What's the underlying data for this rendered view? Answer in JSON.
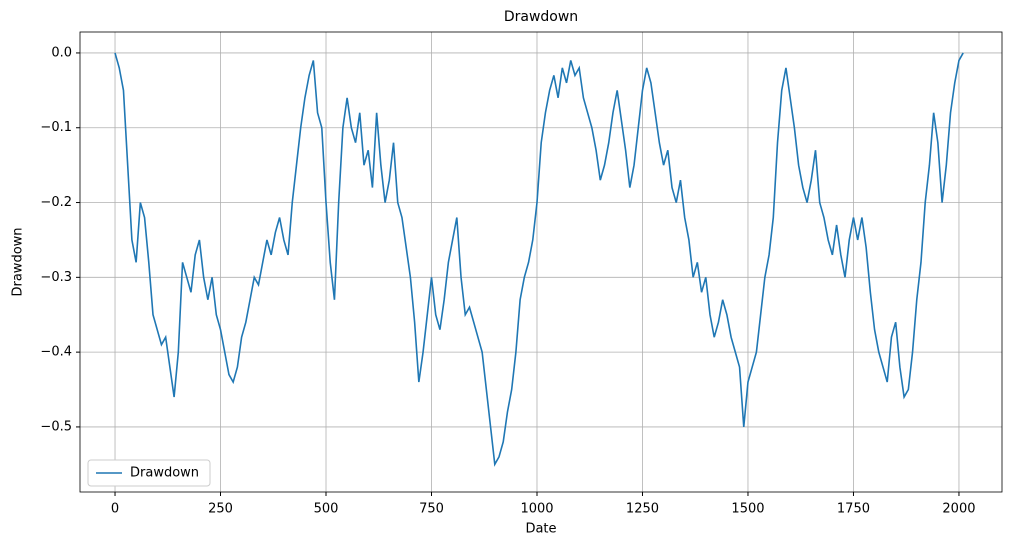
{
  "chart_data": {
    "type": "line",
    "title": "Drawdown",
    "x_label": "Date",
    "y_label": "Drawdown",
    "x": [
      0,
      10,
      20,
      30,
      40,
      50,
      60,
      70,
      80,
      90,
      100,
      110,
      120,
      130,
      140,
      150,
      160,
      170,
      180,
      190,
      200,
      210,
      220,
      230,
      240,
      250,
      260,
      270,
      280,
      290,
      300,
      310,
      320,
      330,
      340,
      350,
      360,
      370,
      380,
      390,
      400,
      410,
      420,
      430,
      440,
      450,
      460,
      470,
      480,
      490,
      500,
      510,
      520,
      530,
      540,
      550,
      560,
      570,
      580,
      590,
      600,
      610,
      620,
      630,
      640,
      650,
      660,
      670,
      680,
      690,
      700,
      710,
      720,
      730,
      740,
      750,
      760,
      770,
      780,
      790,
      800,
      810,
      820,
      830,
      840,
      850,
      860,
      870,
      880,
      890,
      900,
      910,
      920,
      930,
      940,
      950,
      960,
      970,
      980,
      990,
      1000,
      1010,
      1020,
      1030,
      1040,
      1050,
      1060,
      1070,
      1080,
      1090,
      1100,
      1110,
      1120,
      1130,
      1140,
      1150,
      1160,
      1170,
      1180,
      1190,
      1200,
      1210,
      1220,
      1230,
      1240,
      1250,
      1260,
      1270,
      1280,
      1290,
      1300,
      1310,
      1320,
      1330,
      1340,
      1350,
      1360,
      1370,
      1380,
      1390,
      1400,
      1410,
      1420,
      1430,
      1440,
      1450,
      1460,
      1470,
      1480,
      1490,
      1500,
      1510,
      1520,
      1530,
      1540,
      1550,
      1560,
      1570,
      1580,
      1590,
      1600,
      1610,
      1620,
      1630,
      1640,
      1650,
      1660,
      1670,
      1680,
      1690,
      1700,
      1710,
      1720,
      1730,
      1740,
      1750,
      1760,
      1770,
      1780,
      1790,
      1800,
      1810,
      1820,
      1830,
      1840,
      1850,
      1860,
      1870,
      1880,
      1890,
      1900,
      1910,
      1920,
      1930,
      1940,
      1950,
      1960,
      1970,
      1980,
      1990,
      2000,
      2010
    ],
    "series": [
      {
        "name": "Drawdown",
        "color": "#1f77b4",
        "values": [
          0,
          -0.02,
          -0.05,
          -0.15,
          -0.25,
          -0.28,
          -0.2,
          -0.22,
          -0.28,
          -0.35,
          -0.37,
          -0.39,
          -0.38,
          -0.42,
          -0.46,
          -0.4,
          -0.28,
          -0.3,
          -0.32,
          -0.27,
          -0.25,
          -0.3,
          -0.33,
          -0.3,
          -0.35,
          -0.37,
          -0.4,
          -0.43,
          -0.44,
          -0.42,
          -0.38,
          -0.36,
          -0.33,
          -0.3,
          -0.31,
          -0.28,
          -0.25,
          -0.27,
          -0.24,
          -0.22,
          -0.25,
          -0.27,
          -0.2,
          -0.15,
          -0.1,
          -0.06,
          -0.03,
          -0.01,
          -0.08,
          -0.1,
          -0.2,
          -0.28,
          -0.33,
          -0.2,
          -0.1,
          -0.06,
          -0.1,
          -0.12,
          -0.08,
          -0.15,
          -0.13,
          -0.18,
          -0.08,
          -0.15,
          -0.2,
          -0.17,
          -0.12,
          -0.2,
          -0.22,
          -0.26,
          -0.3,
          -0.36,
          -0.44,
          -0.4,
          -0.35,
          -0.3,
          -0.35,
          -0.37,
          -0.33,
          -0.28,
          -0.25,
          -0.22,
          -0.3,
          -0.35,
          -0.34,
          -0.36,
          -0.38,
          -0.4,
          -0.45,
          -0.5,
          -0.55,
          -0.54,
          -0.52,
          -0.48,
          -0.45,
          -0.4,
          -0.33,
          -0.3,
          -0.28,
          -0.25,
          -0.2,
          -0.12,
          -0.08,
          -0.05,
          -0.03,
          -0.06,
          -0.02,
          -0.04,
          -0.01,
          -0.03,
          -0.02,
          -0.06,
          -0.08,
          -0.1,
          -0.13,
          -0.17,
          -0.15,
          -0.12,
          -0.08,
          -0.05,
          -0.09,
          -0.13,
          -0.18,
          -0.15,
          -0.1,
          -0.05,
          -0.02,
          -0.04,
          -0.08,
          -0.12,
          -0.15,
          -0.13,
          -0.18,
          -0.2,
          -0.17,
          -0.22,
          -0.25,
          -0.3,
          -0.28,
          -0.32,
          -0.3,
          -0.35,
          -0.38,
          -0.36,
          -0.33,
          -0.35,
          -0.38,
          -0.4,
          -0.42,
          -0.5,
          -0.44,
          -0.42,
          -0.4,
          -0.35,
          -0.3,
          -0.27,
          -0.22,
          -0.12,
          -0.05,
          -0.02,
          -0.06,
          -0.1,
          -0.15,
          -0.18,
          -0.2,
          -0.17,
          -0.13,
          -0.2,
          -0.22,
          -0.25,
          -0.27,
          -0.23,
          -0.27,
          -0.3,
          -0.25,
          -0.22,
          -0.25,
          -0.22,
          -0.26,
          -0.32,
          -0.37,
          -0.4,
          -0.42,
          -0.44,
          -0.38,
          -0.36,
          -0.42,
          -0.46,
          -0.45,
          -0.4,
          -0.33,
          -0.28,
          -0.2,
          -0.15,
          -0.08,
          -0.12,
          -0.2,
          -0.15,
          -0.08,
          -0.04,
          -0.01,
          0
        ]
      }
    ],
    "xlim": [
      -83,
      2102
    ],
    "ylim": [
      -0.587,
      0.028
    ],
    "xticks": [
      0,
      250,
      500,
      750,
      1000,
      1250,
      1500,
      1750,
      2000
    ],
    "yticks": [
      {
        "value": 0,
        "label": "0.0"
      },
      {
        "value": -0.1,
        "label": "−0.1"
      },
      {
        "value": -0.2,
        "label": "−0.2"
      },
      {
        "value": -0.3,
        "label": "−0.3"
      },
      {
        "value": -0.4,
        "label": "−0.4"
      },
      {
        "value": -0.5,
        "label": "−0.5"
      }
    ],
    "grid": true,
    "legend": "lower left"
  }
}
